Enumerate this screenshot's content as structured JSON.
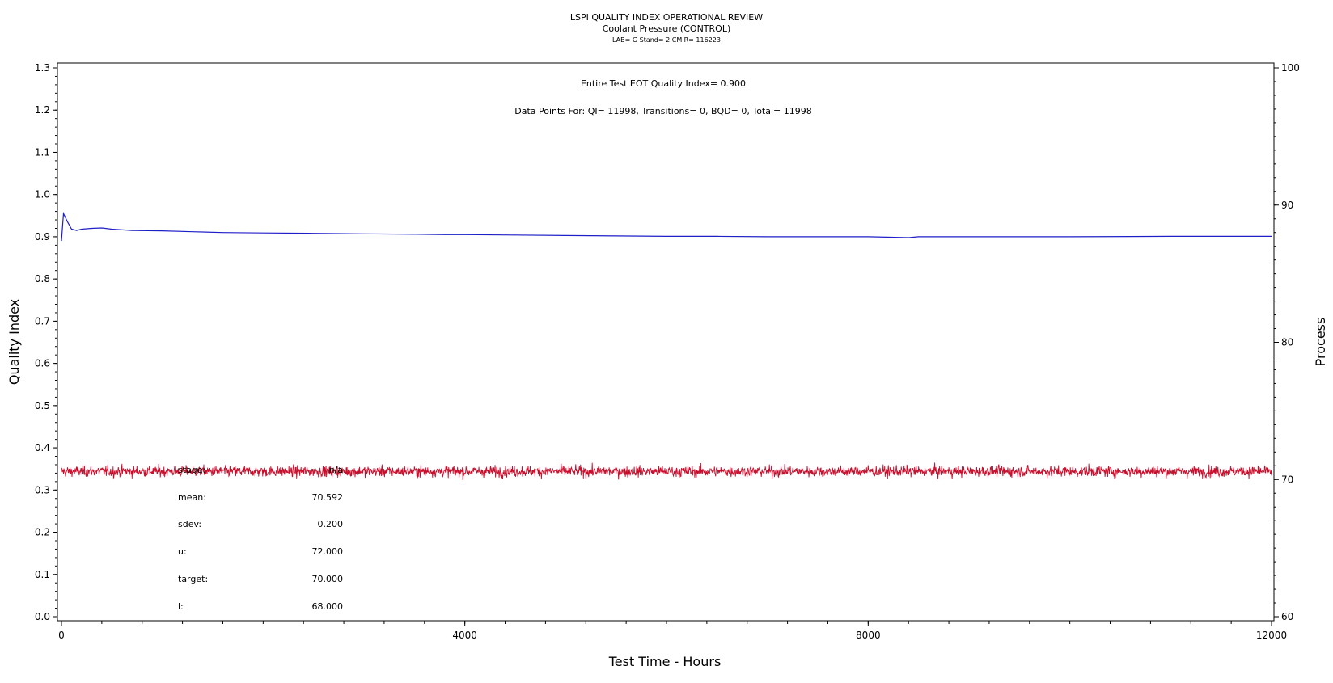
{
  "chart_data": {
    "type": "line",
    "title": "LSPI QUALITY INDEX OPERATIONAL REVIEW",
    "subtitle": "Coolant Pressure (CONTROL)",
    "subtitle2": "LAB= G Stand= 2 CMIR= 116223",
    "xlabel": "Test Time - Hours",
    "ylabel": "Quality Index",
    "y2label": "Process",
    "xlim": [
      0,
      12000
    ],
    "ylim": [
      0.0,
      1.3
    ],
    "y2lim": [
      60,
      100
    ],
    "x_ticks": [
      "0",
      "4000",
      "8000",
      "12000"
    ],
    "y_ticks": [
      "0.0",
      "0.1",
      "0.2",
      "0.3",
      "0.4",
      "0.5",
      "0.6",
      "0.7",
      "0.8",
      "0.9",
      "1.0",
      "1.1",
      "1.2",
      "1.3"
    ],
    "y2_ticks": [
      "60",
      "70",
      "80",
      "90",
      "100"
    ],
    "annotations": {
      "eot_quality_index": "Entire Test EOT Quality Index=   0.900",
      "data_points": "Data Points For: QI= 11998, Transitions=     0, BQD=     0, Total= 11998"
    },
    "stats": [
      {
        "label": "stage:",
        "value": "n/a"
      },
      {
        "label": "mean:",
        "value": "70.592"
      },
      {
        "label": "sdev:",
        "value": "0.200"
      },
      {
        "label": "u:",
        "value": "72.000"
      },
      {
        "label": "target:",
        "value": "70.000"
      },
      {
        "label": "l:",
        "value": "68.000"
      }
    ],
    "series": [
      {
        "axis": "left",
        "color": "#1f1fc8",
        "x": [
          0,
          20,
          60,
          100,
          150,
          200,
          300,
          400,
          500,
          700,
          1000,
          1300,
          1600,
          2000,
          2500,
          3000,
          3500,
          3800,
          4000,
          4500,
          5000,
          5500,
          6000,
          6500,
          7000,
          7500,
          8000,
          8400,
          8500,
          9000,
          10000,
          11000,
          11500,
          12000
        ],
        "values": [
          0.89,
          0.955,
          0.935,
          0.918,
          0.915,
          0.918,
          0.92,
          0.921,
          0.918,
          0.915,
          0.914,
          0.912,
          0.91,
          0.909,
          0.908,
          0.907,
          0.906,
          0.905,
          0.905,
          0.904,
          0.903,
          0.902,
          0.901,
          0.901,
          0.9,
          0.9,
          0.9,
          0.898,
          0.9,
          0.9,
          0.9,
          0.901,
          0.901,
          0.901
        ]
      },
      {
        "axis": "right",
        "color": "#c8102e",
        "mean": 70.592,
        "sdev": 0.2,
        "x_range": [
          0,
          12000
        ]
      }
    ]
  }
}
